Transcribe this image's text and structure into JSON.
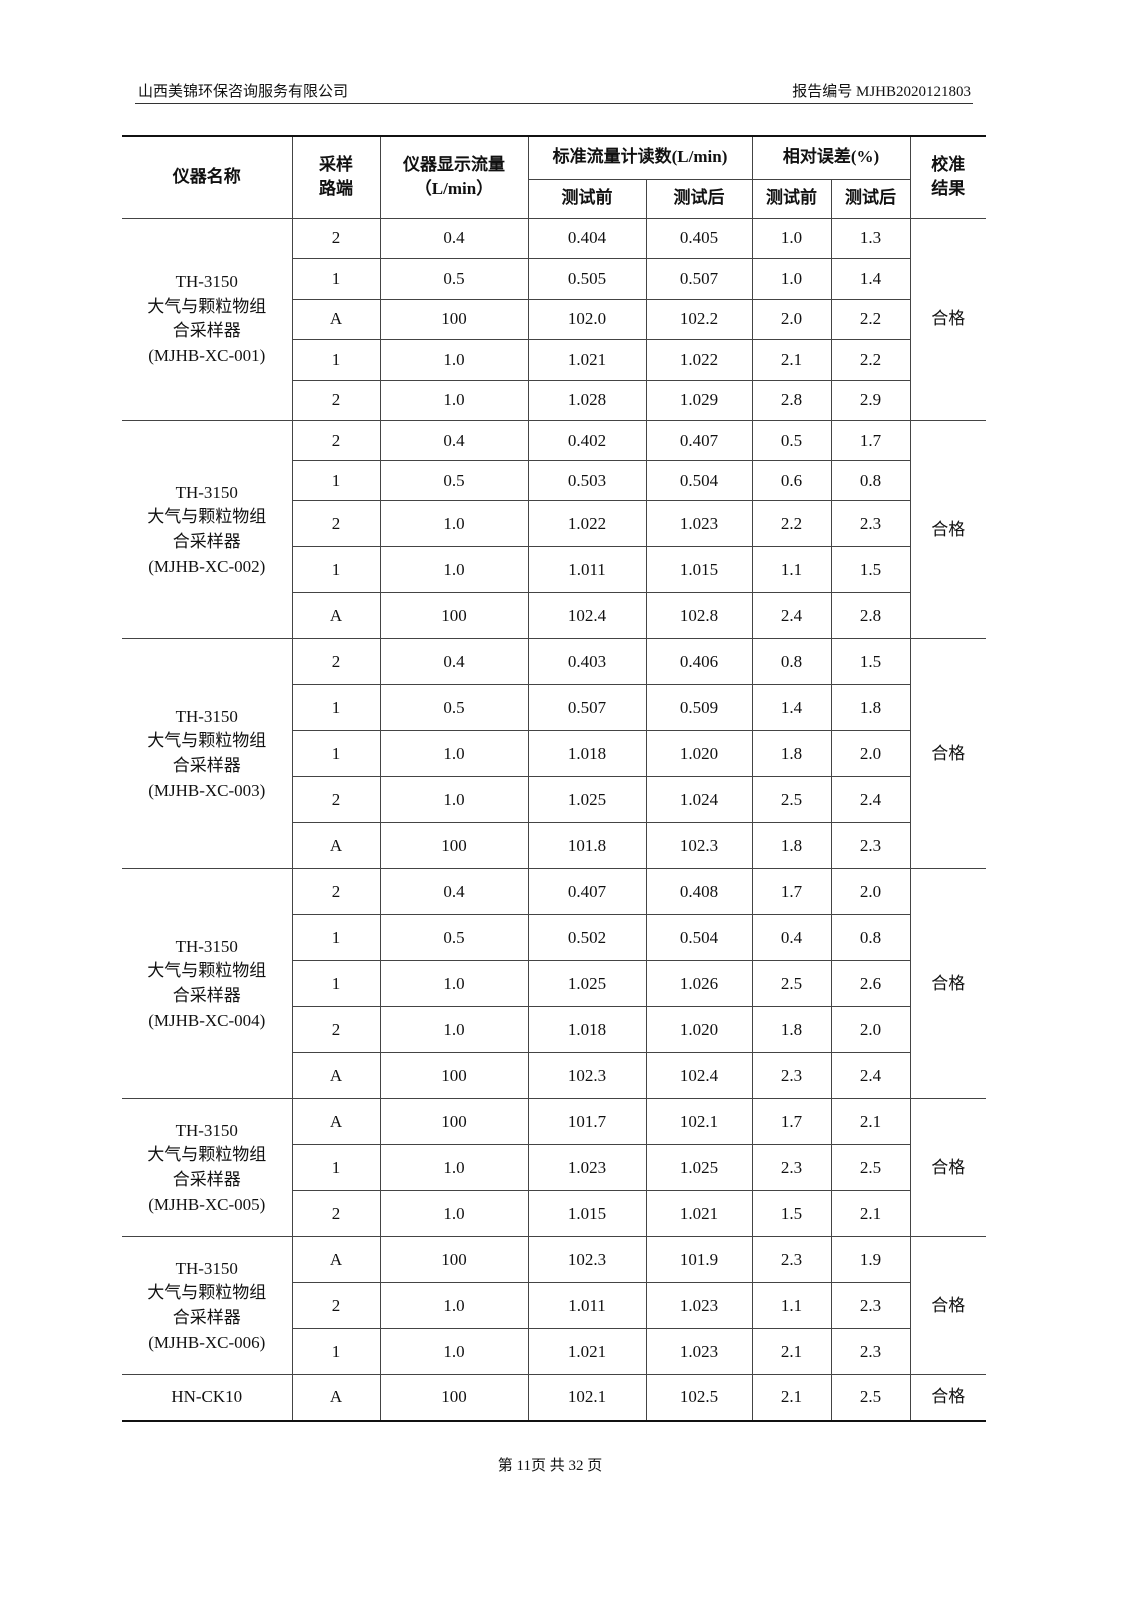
{
  "header": {
    "company": "山西美锦环保咨询服务有限公司",
    "report_no": "报告编号 MJHB2020121803"
  },
  "table": {
    "headers": {
      "name": "仪器名称",
      "port": "采样路端",
      "display_flow": "仪器显示流量",
      "display_flow_unit": "（L/min）",
      "std_flow": "标准流量计读数(L/min)",
      "rel_err": "相对误差(%)",
      "result": "校准结果",
      "before": "测试前",
      "after": "测试后"
    },
    "groups": [
      {
        "name": [
          "TH-3150",
          "大气与颗粒物组",
          "合采样器",
          "(MJHB-XC-001)"
        ],
        "result": "合格",
        "rows": [
          [
            "2",
            "0.4",
            "0.404",
            "0.405",
            "1.0",
            "1.3"
          ],
          [
            "1",
            "0.5",
            "0.505",
            "0.507",
            "1.0",
            "1.4"
          ],
          [
            "A",
            "100",
            "102.0",
            "102.2",
            "2.0",
            "2.2"
          ],
          [
            "1",
            "1.0",
            "1.021",
            "1.022",
            "2.1",
            "2.2"
          ],
          [
            "2",
            "1.0",
            "1.028",
            "1.029",
            "2.8",
            "2.9"
          ]
        ]
      },
      {
        "name": [
          "TH-3150",
          "大气与颗粒物组",
          "合采样器",
          "(MJHB-XC-002)"
        ],
        "result": "合格",
        "rows": [
          [
            "2",
            "0.4",
            "0.402",
            "0.407",
            "0.5",
            "1.7"
          ],
          [
            "1",
            "0.5",
            "0.503",
            "0.504",
            "0.6",
            "0.8"
          ],
          [
            "2",
            "1.0",
            "1.022",
            "1.023",
            "2.2",
            "2.3"
          ],
          [
            "1",
            "1.0",
            "1.011",
            "1.015",
            "1.1",
            "1.5"
          ],
          [
            "A",
            "100",
            "102.4",
            "102.8",
            "2.4",
            "2.8"
          ]
        ]
      },
      {
        "name": [
          "TH-3150",
          "大气与颗粒物组",
          "合采样器",
          "(MJHB-XC-003)"
        ],
        "result": "合格",
        "rows": [
          [
            "2",
            "0.4",
            "0.403",
            "0.406",
            "0.8",
            "1.5"
          ],
          [
            "1",
            "0.5",
            "0.507",
            "0.509",
            "1.4",
            "1.8"
          ],
          [
            "1",
            "1.0",
            "1.018",
            "1.020",
            "1.8",
            "2.0"
          ],
          [
            "2",
            "1.0",
            "1.025",
            "1.024",
            "2.5",
            "2.4"
          ],
          [
            "A",
            "100",
            "101.8",
            "102.3",
            "1.8",
            "2.3"
          ]
        ]
      },
      {
        "name": [
          "TH-3150",
          "大气与颗粒物组",
          "合采样器",
          "(MJHB-XC-004)"
        ],
        "result": "合格",
        "rows": [
          [
            "2",
            "0.4",
            "0.407",
            "0.408",
            "1.7",
            "2.0"
          ],
          [
            "1",
            "0.5",
            "0.502",
            "0.504",
            "0.4",
            "0.8"
          ],
          [
            "1",
            "1.0",
            "1.025",
            "1.026",
            "2.5",
            "2.6"
          ],
          [
            "2",
            "1.0",
            "1.018",
            "1.020",
            "1.8",
            "2.0"
          ],
          [
            "A",
            "100",
            "102.3",
            "102.4",
            "2.3",
            "2.4"
          ]
        ]
      },
      {
        "name": [
          "TH-3150",
          "大气与颗粒物组",
          "合采样器",
          "(MJHB-XC-005)"
        ],
        "result": "合格",
        "rows": [
          [
            "A",
            "100",
            "101.7",
            "102.1",
            "1.7",
            "2.1"
          ],
          [
            "1",
            "1.0",
            "1.023",
            "1.025",
            "2.3",
            "2.5"
          ],
          [
            "2",
            "1.0",
            "1.015",
            "1.021",
            "1.5",
            "2.1"
          ]
        ]
      },
      {
        "name": [
          "TH-3150",
          "大气与颗粒物组",
          "合采样器",
          "(MJHB-XC-006)"
        ],
        "result": "合格",
        "rows": [
          [
            "A",
            "100",
            "102.3",
            "101.9",
            "2.3",
            "1.9"
          ],
          [
            "2",
            "1.0",
            "1.011",
            "1.023",
            "1.1",
            "2.3"
          ],
          [
            "1",
            "1.0",
            "1.021",
            "1.023",
            "2.1",
            "2.3"
          ]
        ]
      },
      {
        "name": [
          "HN-CK10"
        ],
        "result": "合格",
        "rows": [
          [
            "A",
            "100",
            "102.1",
            "102.5",
            "2.1",
            "2.5"
          ]
        ]
      }
    ]
  },
  "footer": {
    "page": "第 11页  共 32 页"
  }
}
